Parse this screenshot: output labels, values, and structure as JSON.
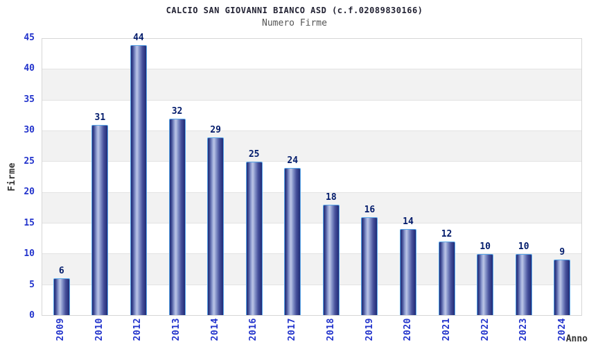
{
  "chart_data": {
    "type": "bar",
    "title": "CALCIO SAN GIOVANNI BIANCO ASD (c.f.02089830166)",
    "subtitle": "Numero Firme",
    "categories": [
      "2009",
      "2010",
      "2012",
      "2013",
      "2014",
      "2016",
      "2017",
      "2018",
      "2019",
      "2020",
      "2021",
      "2022",
      "2023",
      "2024"
    ],
    "values": [
      6,
      31,
      44,
      32,
      29,
      25,
      24,
      18,
      16,
      14,
      12,
      10,
      10,
      9
    ],
    "xlabel": "Anno",
    "ylabel": "Firme",
    "ylim": [
      0,
      45
    ],
    "ytick_step": 5,
    "yticks": [
      0,
      5,
      10,
      15,
      20,
      25,
      30,
      35,
      40,
      45
    ],
    "grid": "horizontal-gridlines-with-alternating-bands",
    "legend": "none",
    "bar_labels_shown": true
  },
  "colors": {
    "title": "#222233",
    "subtitle": "#555555",
    "tick_label": "#2233cc",
    "bar_value_label": "#021b6b",
    "axis_title": "#333333",
    "band_gray": "#f2f2f2",
    "gridline": "#e3e3e3",
    "plot_border": "#d6d6d6",
    "bar_border": "#58a6e8",
    "bar_dark": "#202b76",
    "bar_light": "#bcc5e6"
  }
}
